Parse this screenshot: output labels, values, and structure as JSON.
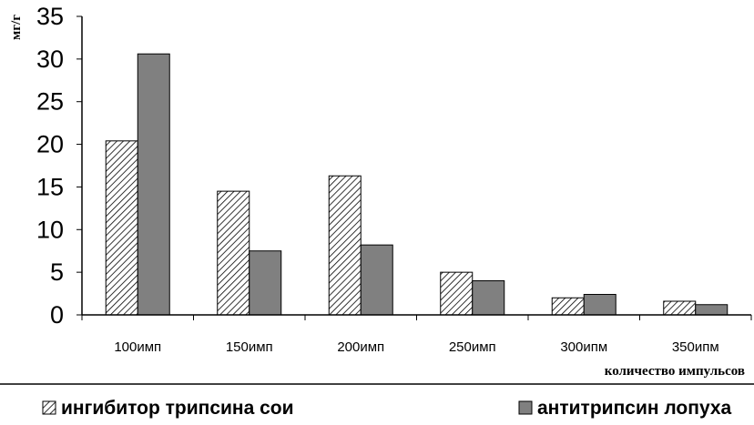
{
  "chart_data": {
    "type": "bar",
    "ylabel": "мг/г",
    "xlabel": "количество импульсов",
    "ylim": [
      0,
      35
    ],
    "yticks": [
      0,
      5,
      10,
      15,
      20,
      25,
      30,
      35
    ],
    "categories": [
      "100имп",
      "150имп",
      "200имп",
      "250имп",
      "300ипм",
      "350ипм"
    ],
    "series": [
      {
        "name": "ингибитор трипсина сои",
        "pattern": "hatched",
        "color": "#ffffff",
        "values": [
          20.4,
          14.5,
          16.3,
          5.0,
          2.0,
          1.6
        ]
      },
      {
        "name": "антитрипсин лопуха",
        "pattern": "solid",
        "color": "#808080",
        "values": [
          30.6,
          7.5,
          8.2,
          4.0,
          2.4,
          1.2
        ]
      }
    ],
    "grid": false,
    "legend": "bottom"
  }
}
